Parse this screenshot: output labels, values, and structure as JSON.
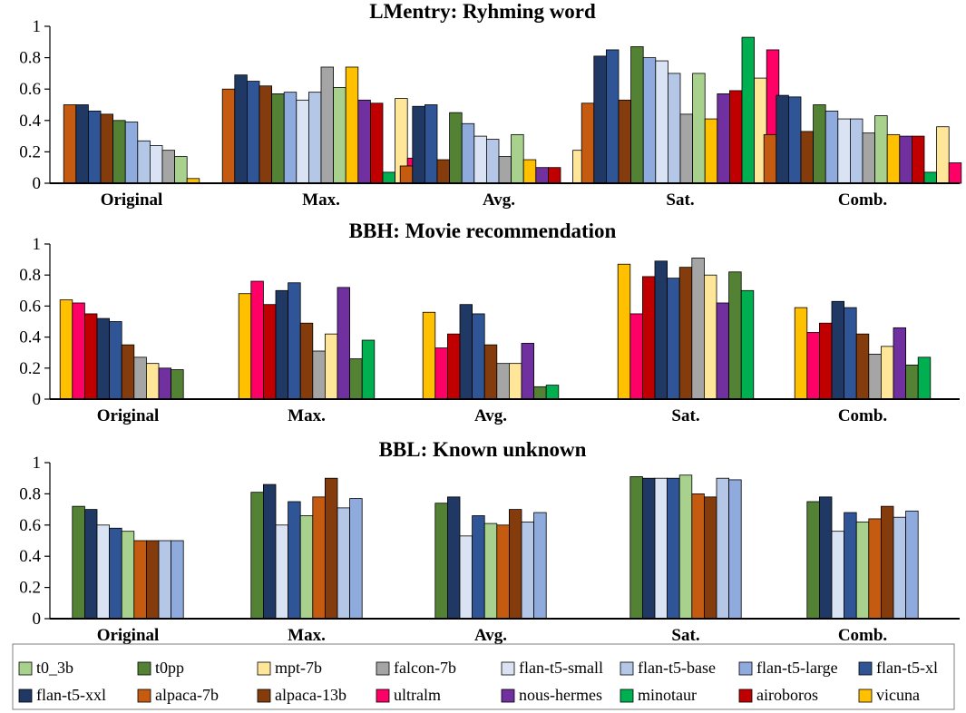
{
  "series_styles": {
    "t0_3b": "#a9d18e",
    "t0pp": "#548235",
    "mpt-7b": "#ffe699",
    "falcon-7b": "#a5a5a5",
    "flan-t5-small": "#dae3f3",
    "flan-t5-base": "#b4c7e7",
    "flan-t5-large": "#8faadc",
    "flan-t5-xl": "#2f5597",
    "flan-t5-xxl": "#203864",
    "alpaca-7b": "#c55a11",
    "alpaca-13b": "#843c0c",
    "ultralm": "#ff0066",
    "nous-hermes": "#7030a0",
    "minotaur": "#00b050",
    "airoboros": "#c00000",
    "vicuna": "#ffc000"
  },
  "legend": [
    "t0_3b",
    "t0pp",
    "mpt-7b",
    "falcon-7b",
    "flan-t5-small",
    "flan-t5-base",
    "flan-t5-large",
    "flan-t5-xl",
    "flan-t5-xxl",
    "alpaca-7b",
    "alpaca-13b",
    "ultralm",
    "nous-hermes",
    "minotaur",
    "airoboros",
    "vicuna"
  ],
  "chart_data": [
    {
      "type": "bar",
      "title": "LMentry: Ryhming word",
      "categories": [
        "Original",
        "Max.",
        "Avg.",
        "Sat.",
        "Comb."
      ],
      "ylim": [
        0,
        1
      ],
      "yticks": [
        "0",
        "0.2",
        "0.4",
        "0.6",
        "0.8",
        "1"
      ],
      "groups": [
        [
          [
            "alpaca-7b",
            0.5
          ],
          [
            "flan-t5-xxl",
            0.5
          ],
          [
            "flan-t5-xl",
            0.46
          ],
          [
            "alpaca-13b",
            0.44
          ],
          [
            "t0pp",
            0.4
          ],
          [
            "flan-t5-large",
            0.39
          ],
          [
            "flan-t5-base",
            0.27
          ],
          [
            "flan-t5-small",
            0.24
          ],
          [
            "falcon-7b",
            0.21
          ],
          [
            "t0_3b",
            0.17
          ],
          [
            "vicuna",
            0.03
          ]
        ],
        [
          [
            "alpaca-7b",
            0.6
          ],
          [
            "flan-t5-xxl",
            0.69
          ],
          [
            "flan-t5-xl",
            0.65
          ],
          [
            "alpaca-13b",
            0.62
          ],
          [
            "t0pp",
            0.57
          ],
          [
            "flan-t5-large",
            0.58
          ],
          [
            "flan-t5-small",
            0.53
          ],
          [
            "flan-t5-base",
            0.58
          ],
          [
            "falcon-7b",
            0.74
          ],
          [
            "t0_3b",
            0.61
          ],
          [
            "vicuna",
            0.74
          ],
          [
            "nous-hermes",
            0.53
          ],
          [
            "airoboros",
            0.51
          ],
          [
            "minotaur",
            0.07
          ],
          [
            "mpt-7b",
            0.54
          ],
          [
            "ultralm",
            0.16
          ]
        ],
        [
          [
            "alpaca-7b",
            0.11
          ],
          [
            "flan-t5-xxl",
            0.49
          ],
          [
            "flan-t5-xl",
            0.5
          ],
          [
            "alpaca-13b",
            0.15
          ],
          [
            "t0pp",
            0.45
          ],
          [
            "flan-t5-large",
            0.38
          ],
          [
            "flan-t5-small",
            0.3
          ],
          [
            "flan-t5-base",
            0.28
          ],
          [
            "falcon-7b",
            0.17
          ],
          [
            "t0_3b",
            0.31
          ],
          [
            "vicuna",
            0.15
          ],
          [
            "nous-hermes",
            0.1
          ],
          [
            "airoboros",
            0.1
          ],
          [
            "minotaur",
            0.0
          ],
          [
            "mpt-7b",
            0.21
          ],
          [
            "ultralm",
            0.0
          ]
        ],
        [
          [
            "alpaca-7b",
            0.51
          ],
          [
            "flan-t5-xxl",
            0.81
          ],
          [
            "flan-t5-xl",
            0.85
          ],
          [
            "alpaca-13b",
            0.53
          ],
          [
            "t0pp",
            0.87
          ],
          [
            "flan-t5-large",
            0.8
          ],
          [
            "flan-t5-small",
            0.78
          ],
          [
            "flan-t5-base",
            0.7
          ],
          [
            "falcon-7b",
            0.44
          ],
          [
            "t0_3b",
            0.7
          ],
          [
            "vicuna",
            0.41
          ],
          [
            "nous-hermes",
            0.57
          ],
          [
            "airoboros",
            0.59
          ],
          [
            "minotaur",
            0.93
          ],
          [
            "mpt-7b",
            0.67
          ],
          [
            "ultralm",
            0.85
          ]
        ],
        [
          [
            "alpaca-7b",
            0.31
          ],
          [
            "flan-t5-xxl",
            0.56
          ],
          [
            "flan-t5-xl",
            0.55
          ],
          [
            "alpaca-13b",
            0.33
          ],
          [
            "t0pp",
            0.5
          ],
          [
            "flan-t5-large",
            0.46
          ],
          [
            "flan-t5-small",
            0.41
          ],
          [
            "flan-t5-base",
            0.41
          ],
          [
            "falcon-7b",
            0.32
          ],
          [
            "t0_3b",
            0.43
          ],
          [
            "vicuna",
            0.31
          ],
          [
            "nous-hermes",
            0.3
          ],
          [
            "airoboros",
            0.3
          ],
          [
            "minotaur",
            0.07
          ],
          [
            "mpt-7b",
            0.36
          ],
          [
            "ultralm",
            0.13
          ]
        ]
      ]
    },
    {
      "type": "bar",
      "title": "BBH: Movie recommendation",
      "categories": [
        "Original",
        "Max.",
        "Avg.",
        "Sat.",
        "Comb."
      ],
      "ylim": [
        0,
        1
      ],
      "yticks": [
        "0",
        "0.2",
        "0.4",
        "0.6",
        "0.8",
        "1"
      ],
      "groups": [
        [
          [
            "vicuna",
            0.64
          ],
          [
            "ultralm",
            0.62
          ],
          [
            "airoboros",
            0.55
          ],
          [
            "flan-t5-xxl",
            0.52
          ],
          [
            "flan-t5-xl",
            0.5
          ],
          [
            "alpaca-13b",
            0.35
          ],
          [
            "falcon-7b",
            0.27
          ],
          [
            "mpt-7b",
            0.23
          ],
          [
            "nous-hermes",
            0.2
          ],
          [
            "t0pp",
            0.19
          ],
          [
            "minotaur",
            0.0
          ]
        ],
        [
          [
            "vicuna",
            0.68
          ],
          [
            "ultralm",
            0.76
          ],
          [
            "airoboros",
            0.61
          ],
          [
            "flan-t5-xxl",
            0.7
          ],
          [
            "flan-t5-xl",
            0.75
          ],
          [
            "alpaca-13b",
            0.49
          ],
          [
            "falcon-7b",
            0.31
          ],
          [
            "mpt-7b",
            0.42
          ],
          [
            "nous-hermes",
            0.72
          ],
          [
            "t0pp",
            0.26
          ],
          [
            "minotaur",
            0.38
          ]
        ],
        [
          [
            "vicuna",
            0.56
          ],
          [
            "ultralm",
            0.33
          ],
          [
            "airoboros",
            0.42
          ],
          [
            "flan-t5-xxl",
            0.61
          ],
          [
            "flan-t5-xl",
            0.55
          ],
          [
            "alpaca-13b",
            0.35
          ],
          [
            "falcon-7b",
            0.23
          ],
          [
            "mpt-7b",
            0.23
          ],
          [
            "nous-hermes",
            0.36
          ],
          [
            "t0pp",
            0.08
          ],
          [
            "minotaur",
            0.09
          ]
        ],
        [
          [
            "vicuna",
            0.87
          ],
          [
            "ultralm",
            0.55
          ],
          [
            "airoboros",
            0.79
          ],
          [
            "flan-t5-xxl",
            0.89
          ],
          [
            "flan-t5-xl",
            0.78
          ],
          [
            "alpaca-13b",
            0.85
          ],
          [
            "falcon-7b",
            0.91
          ],
          [
            "mpt-7b",
            0.8
          ],
          [
            "nous-hermes",
            0.62
          ],
          [
            "t0pp",
            0.82
          ],
          [
            "minotaur",
            0.7
          ]
        ],
        [
          [
            "vicuna",
            0.59
          ],
          [
            "ultralm",
            0.43
          ],
          [
            "airoboros",
            0.49
          ],
          [
            "flan-t5-xxl",
            0.63
          ],
          [
            "flan-t5-xl",
            0.59
          ],
          [
            "alpaca-13b",
            0.42
          ],
          [
            "falcon-7b",
            0.29
          ],
          [
            "mpt-7b",
            0.34
          ],
          [
            "nous-hermes",
            0.46
          ],
          [
            "t0pp",
            0.22
          ],
          [
            "minotaur",
            0.27
          ]
        ]
      ]
    },
    {
      "type": "bar",
      "title": "BBL: Known unknown",
      "categories": [
        "Original",
        "Max.",
        "Avg.",
        "Sat.",
        "Comb."
      ],
      "ylim": [
        0,
        1
      ],
      "yticks": [
        "0",
        "0.2",
        "0.4",
        "0.6",
        "0.8",
        "1"
      ],
      "groups": [
        [
          [
            "t0pp",
            0.72
          ],
          [
            "flan-t5-xxl",
            0.7
          ],
          [
            "flan-t5-small",
            0.6
          ],
          [
            "flan-t5-xl",
            0.58
          ],
          [
            "t0_3b",
            0.56
          ],
          [
            "alpaca-7b",
            0.5
          ],
          [
            "alpaca-13b",
            0.5
          ],
          [
            "flan-t5-base",
            0.5
          ],
          [
            "flan-t5-large",
            0.5
          ]
        ],
        [
          [
            "t0pp",
            0.81
          ],
          [
            "flan-t5-xxl",
            0.86
          ],
          [
            "flan-t5-small",
            0.6
          ],
          [
            "flan-t5-xl",
            0.75
          ],
          [
            "t0_3b",
            0.66
          ],
          [
            "alpaca-7b",
            0.78
          ],
          [
            "alpaca-13b",
            0.9
          ],
          [
            "flan-t5-base",
            0.71
          ],
          [
            "flan-t5-large",
            0.77
          ]
        ],
        [
          [
            "t0pp",
            0.74
          ],
          [
            "flan-t5-xxl",
            0.78
          ],
          [
            "flan-t5-small",
            0.53
          ],
          [
            "flan-t5-xl",
            0.66
          ],
          [
            "t0_3b",
            0.61
          ],
          [
            "alpaca-7b",
            0.6
          ],
          [
            "alpaca-13b",
            0.7
          ],
          [
            "flan-t5-base",
            0.62
          ],
          [
            "flan-t5-large",
            0.68
          ]
        ],
        [
          [
            "t0pp",
            0.91
          ],
          [
            "flan-t5-xxl",
            0.9
          ],
          [
            "flan-t5-small",
            0.9
          ],
          [
            "flan-t5-xl",
            0.9
          ],
          [
            "t0_3b",
            0.92
          ],
          [
            "alpaca-7b",
            0.8
          ],
          [
            "alpaca-13b",
            0.78
          ],
          [
            "flan-t5-base",
            0.9
          ],
          [
            "flan-t5-large",
            0.89
          ]
        ],
        [
          [
            "t0pp",
            0.75
          ],
          [
            "flan-t5-xxl",
            0.78
          ],
          [
            "flan-t5-small",
            0.56
          ],
          [
            "flan-t5-xl",
            0.68
          ],
          [
            "t0_3b",
            0.62
          ],
          [
            "alpaca-7b",
            0.64
          ],
          [
            "alpaca-13b",
            0.72
          ],
          [
            "flan-t5-base",
            0.65
          ],
          [
            "flan-t5-large",
            0.69
          ]
        ]
      ]
    }
  ]
}
